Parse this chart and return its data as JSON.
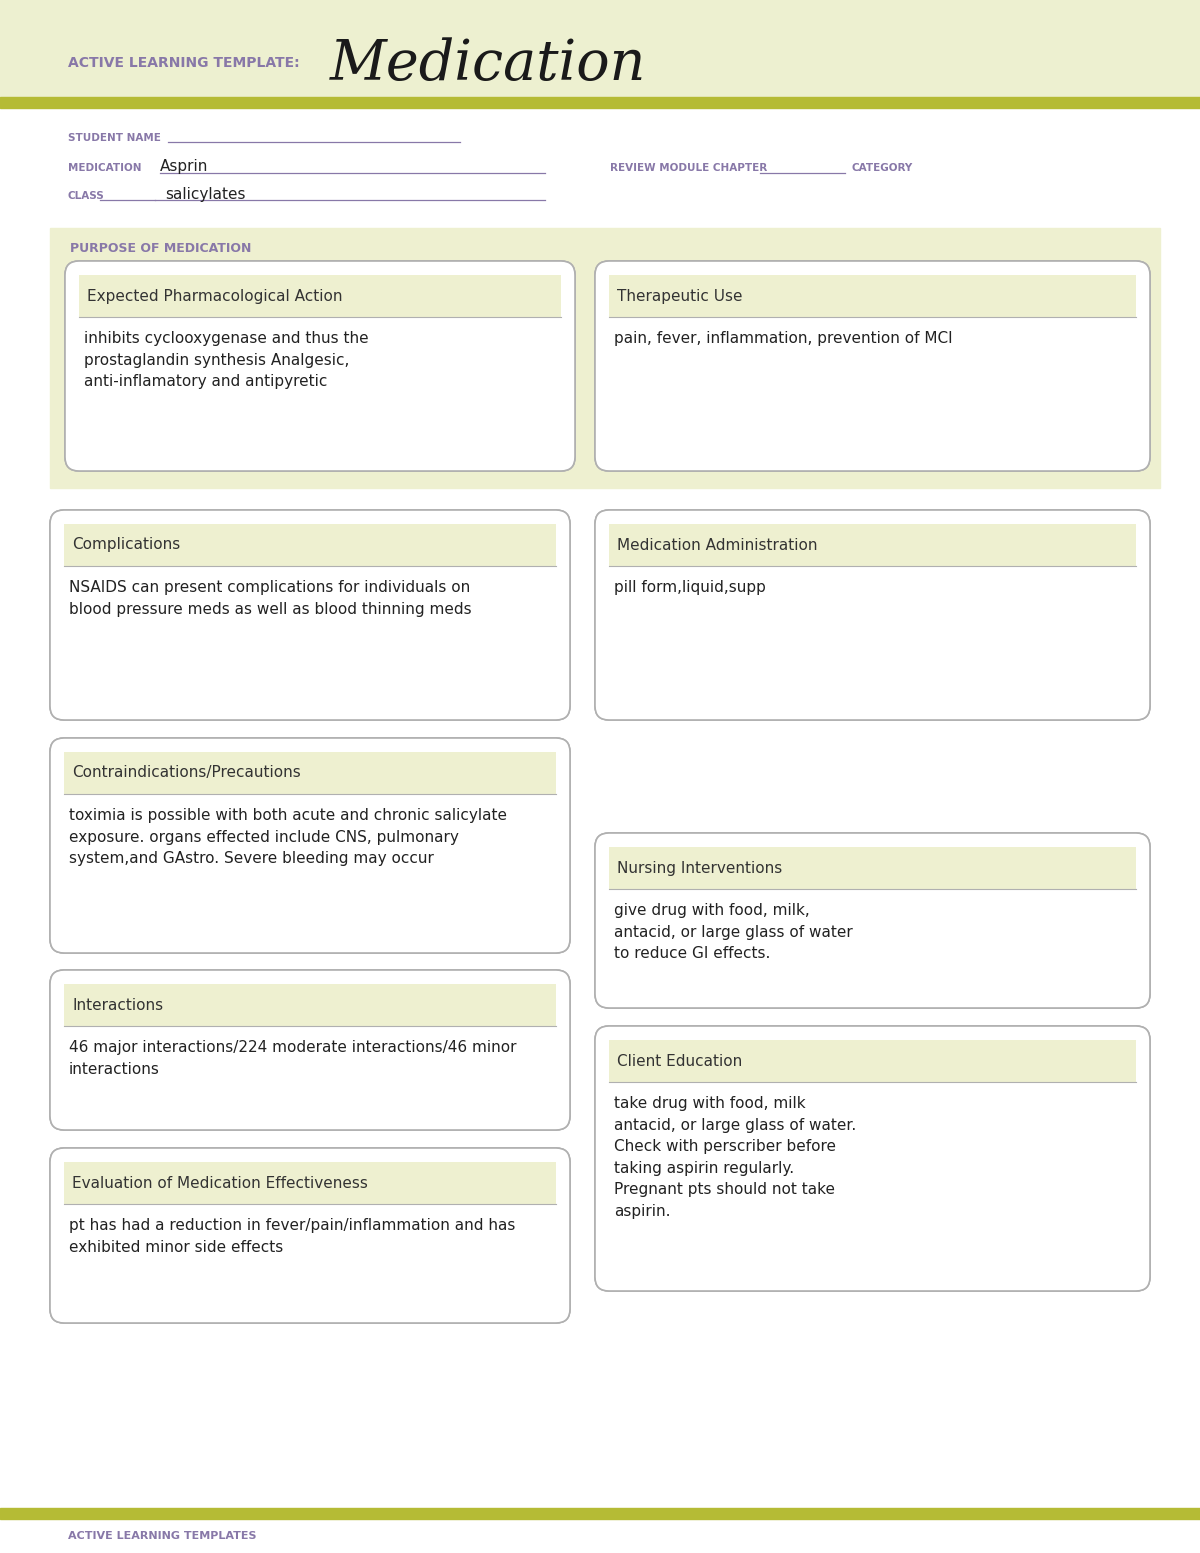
{
  "bg_header_color": "#edf0d0",
  "bg_stripe_color": "#b5bb35",
  "bg_white": "#ffffff",
  "text_purple": "#8878a8",
  "text_dark": "#333333",
  "text_black": "#222222",
  "box_bg": "#eef0d0",
  "box_border": "#b0b0b0",
  "header_label": "ACTIVE LEARNING TEMPLATE:",
  "header_title": "Medication",
  "student_name_label": "STUDENT NAME",
  "medication_label": "MEDICATION",
  "medication_value": "Asprin",
  "review_label": "REVIEW MODULE CHAPTER",
  "category_label": "CATEGORY",
  "class_label": "CLASS",
  "class_value": "salicylates",
  "purpose_label": "PURPOSE OF MEDICATION",
  "box1_title": "Expected Pharmacological Action",
  "box1_content": "inhibits cyclooxygenase and thus the\nprostaglandin synthesis Analgesic,\nanti-inflamatory and antipyretic",
  "box2_title": "Therapeutic Use",
  "box2_content": "pain, fever, inflammation, prevention of MCI",
  "box3_title": "Complications",
  "box3_content": "NSAIDS can present complications for individuals on\nblood pressure meds as well as blood thinning meds",
  "box4_title": "Medication Administration",
  "box4_content": "pill form,liquid,supp",
  "box5_title": "Contraindications/Precautions",
  "box5_content": "toximia is possible with both acute and chronic salicylate\nexposure. organs effected include CNS, pulmonary\nsystem,and GAstro. Severe bleeding may occur",
  "box6_title": "Nursing Interventions",
  "box6_content": "give drug with food, milk,\nantacid, or large glass of water\nto reduce GI effects.",
  "box7_title": "Interactions",
  "box7_content": "46 major interactions/224 moderate interactions/46 minor\ninteractions",
  "box8_title": "Client Education",
  "box8_content": "take drug with food, milk\nantacid, or large glass of water.\nCheck with perscriber before\ntaking aspirin regularly.\nPregnant pts should not take\naspirin.",
  "box9_title": "Evaluation of Medication Effectiveness",
  "box9_content": "pt has had a reduction in fever/pain/inflammation and has\nexhibited minor side effects",
  "footer_label": "ACTIVE LEARNING TEMPLATES"
}
